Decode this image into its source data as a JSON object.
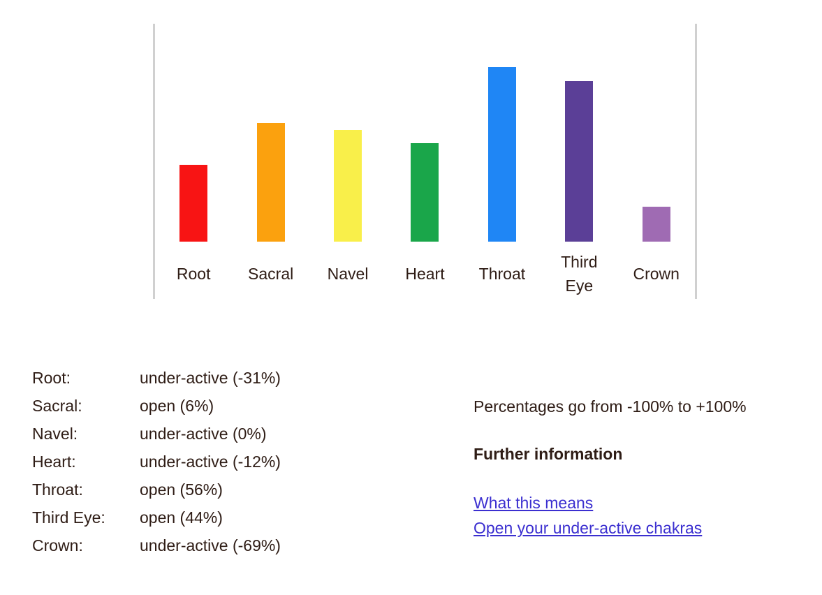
{
  "chart_data": {
    "type": "bar",
    "categories": [
      "Root",
      "Sacral",
      "Navel",
      "Heart",
      "Throat",
      "Third\nEye",
      "Crown"
    ],
    "values": [
      -31,
      6,
      0,
      -12,
      56,
      44,
      -69
    ],
    "bar_colors": [
      "#f81414",
      "#fba10e",
      "#f9ef4a",
      "#1aa64a",
      "#1f86f5",
      "#5b3f97",
      "#9f6bb3"
    ],
    "title": "",
    "xlabel": "",
    "ylabel": "",
    "ylim": [
      -100,
      100
    ],
    "grid": false,
    "legend": false
  },
  "results": {
    "rows": [
      {
        "label": "Root:",
        "value": "under-active (-31%)"
      },
      {
        "label": "Sacral:",
        "value": "open (6%)"
      },
      {
        "label": "Navel:",
        "value": "under-active (0%)"
      },
      {
        "label": "Heart:",
        "value": "under-active (-12%)"
      },
      {
        "label": "Throat:",
        "value": "open (56%)"
      },
      {
        "label": "Third Eye:",
        "value": "open (44%)"
      },
      {
        "label": "Crown:",
        "value": "under-active (-69%)"
      }
    ]
  },
  "info": {
    "note": "Percentages go from -100% to +100%",
    "heading": "Further information",
    "links": [
      {
        "label": "What this means"
      },
      {
        "label": "Open your under-active chakras"
      }
    ]
  },
  "colors": {
    "text": "#2e1c15",
    "link": "#3b2fd0",
    "rule": "#d0d0d0",
    "background": "#ffffff"
  }
}
